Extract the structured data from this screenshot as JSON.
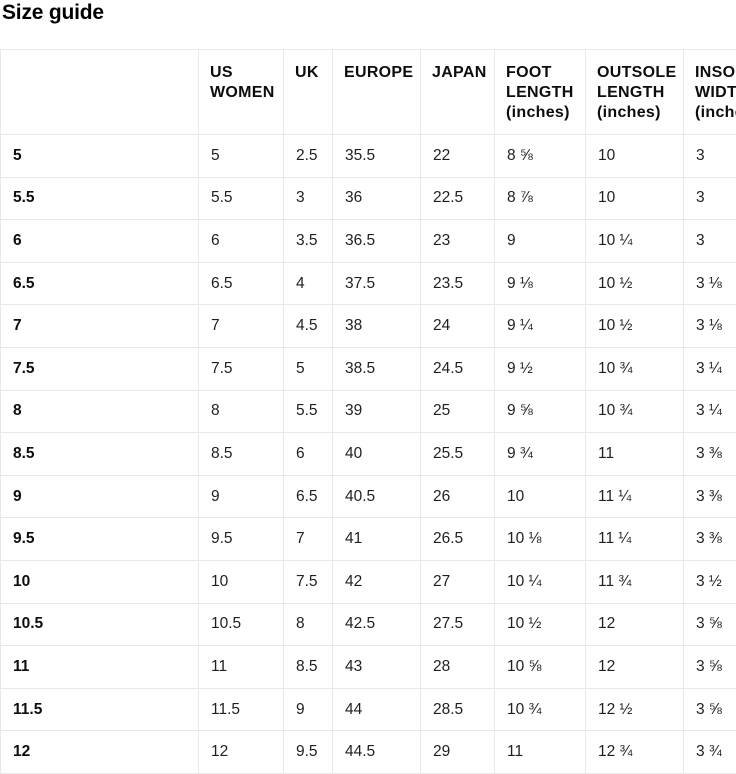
{
  "page": {
    "title": "Size guide"
  },
  "table": {
    "columns": [
      "",
      "US WOMEN",
      "UK",
      "EUROPE",
      "JAPAN",
      "FOOT LENGTH (inches)",
      "OUTSOLE LENGTH (inches)",
      "INSOLE WIDTH (inches)"
    ],
    "rows": [
      {
        "label": "5",
        "values": [
          "5",
          "2.5",
          "35.5",
          "22",
          "8 ⅝",
          "10",
          "3"
        ]
      },
      {
        "label": "5.5",
        "values": [
          "5.5",
          "3",
          "36",
          "22.5",
          "8 ⅞",
          "10",
          "3"
        ]
      },
      {
        "label": "6",
        "values": [
          "6",
          "3.5",
          "36.5",
          "23",
          "9",
          "10 ¼",
          "3"
        ]
      },
      {
        "label": "6.5",
        "values": [
          "6.5",
          "4",
          "37.5",
          "23.5",
          "9 ⅛",
          "10 ½",
          "3 ⅛"
        ]
      },
      {
        "label": "7",
        "values": [
          "7",
          "4.5",
          "38",
          "24",
          "9 ¼",
          "10 ½",
          "3 ⅛"
        ]
      },
      {
        "label": "7.5",
        "values": [
          "7.5",
          "5",
          "38.5",
          "24.5",
          "9 ½",
          "10 ¾",
          "3 ¼"
        ]
      },
      {
        "label": "8",
        "values": [
          "8",
          "5.5",
          "39",
          "25",
          "9 ⅝",
          "10 ¾",
          "3 ¼"
        ]
      },
      {
        "label": "8.5",
        "values": [
          "8.5",
          "6",
          "40",
          "25.5",
          "9 ¾",
          "11",
          "3 ⅜"
        ]
      },
      {
        "label": "9",
        "values": [
          "9",
          "6.5",
          "40.5",
          "26",
          "10",
          "11 ¼",
          "3 ⅜"
        ]
      },
      {
        "label": "9.5",
        "values": [
          "9.5",
          "7",
          "41",
          "26.5",
          "10 ⅛",
          "11 ¼",
          "3 ⅜"
        ]
      },
      {
        "label": "10",
        "values": [
          "10",
          "7.5",
          "42",
          "27",
          "10 ¼",
          "11 ¾",
          "3 ½"
        ]
      },
      {
        "label": "10.5",
        "values": [
          "10.5",
          "8",
          "42.5",
          "27.5",
          "10 ½",
          "12",
          "3 ⅝"
        ]
      },
      {
        "label": "11",
        "values": [
          "11",
          "8.5",
          "43",
          "28",
          "10 ⅝",
          "12",
          "3 ⅝"
        ]
      },
      {
        "label": "11.5",
        "values": [
          "11.5",
          "9",
          "44",
          "28.5",
          "10 ¾",
          "12 ½",
          "3 ⅝"
        ]
      },
      {
        "label": "12",
        "values": [
          "12",
          "9.5",
          "44.5",
          "29",
          "11",
          "12 ¾",
          "3 ¾"
        ]
      }
    ]
  }
}
